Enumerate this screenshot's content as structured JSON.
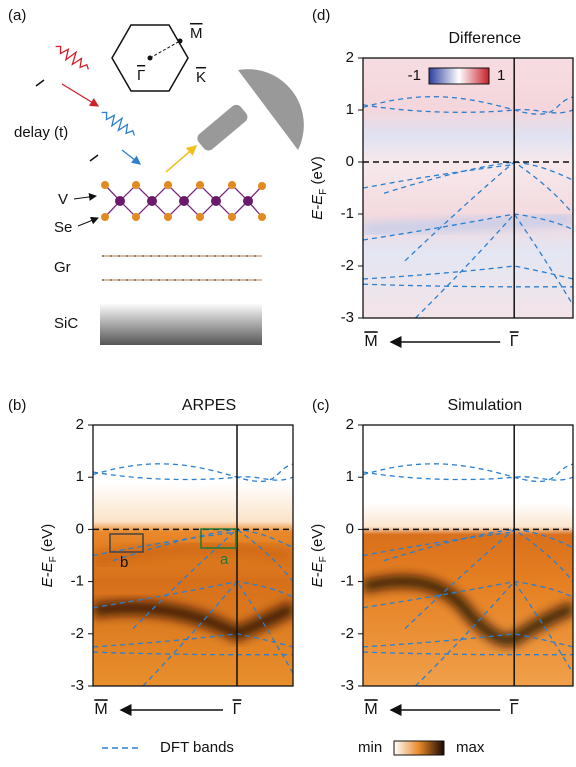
{
  "panel_labels": [
    "(a)",
    "(b)",
    "(c)",
    "(d)"
  ],
  "schematic": {
    "bz": {
      "m": "M",
      "gamma": "Γ",
      "k": "K"
    },
    "delay": "delay (t)",
    "layers": {
      "v": "V",
      "se": "Se",
      "gr": "Gr",
      "sic": "SiC"
    }
  },
  "plots": [
    {
      "title": "ARPES",
      "ylabel": {
        "e": "E-E",
        "sub": "F",
        "unit": " (eV)"
      },
      "ylim": [
        -3,
        2
      ],
      "yticks": [
        2,
        1,
        0,
        -1,
        -2,
        -3
      ],
      "x_labels": {
        "m": "M",
        "gamma": "Γ"
      },
      "boxes": {
        "b": "b",
        "a": "a"
      }
    },
    {
      "title": "Simulation",
      "ylabel": {
        "e": "E-E",
        "sub": "F",
        "unit": " (eV)"
      },
      "ylim": [
        -3,
        2
      ],
      "yticks": [
        2,
        1,
        0,
        -1,
        -2,
        -3
      ],
      "x_labels": {
        "m": "M",
        "gamma": "Γ"
      }
    },
    {
      "title": "Difference",
      "ylabel": {
        "e": "E-E",
        "sub": "F",
        "unit": " (eV)"
      },
      "ylim": [
        -3,
        2
      ],
      "yticks": [
        2,
        1,
        0,
        -1,
        -2,
        -3
      ],
      "x_labels": {
        "m": "M",
        "gamma": "Γ"
      },
      "colorbar": {
        "min": -1,
        "max": 1
      }
    }
  ],
  "legend": {
    "dft": "DFT bands",
    "min": "min",
    "max": "max"
  }
}
